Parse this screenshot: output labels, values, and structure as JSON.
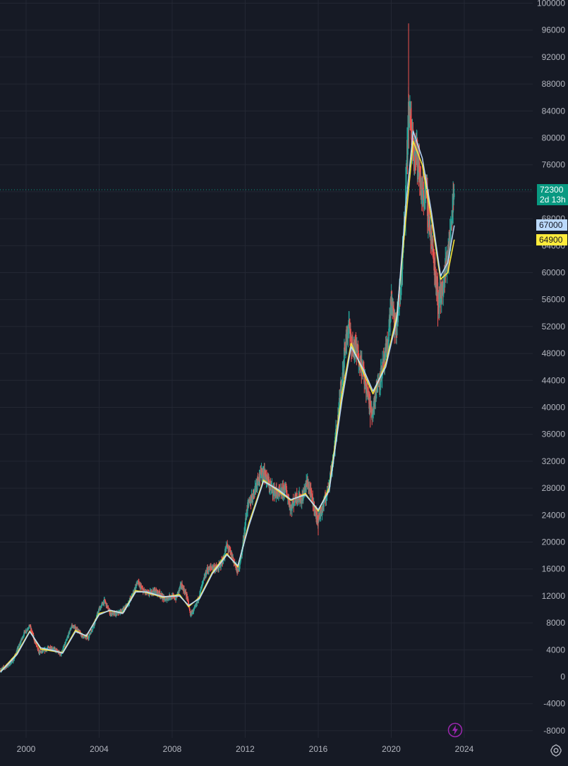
{
  "chart_data": {
    "type": "candlestick",
    "y_axis": {
      "ticks": [
        "-8000",
        "-4000",
        "0",
        "4000",
        "8000",
        "12000",
        "16000",
        "20000",
        "24000",
        "28000",
        "32000",
        "36000",
        "40000",
        "44000",
        "48000",
        "52000",
        "56000",
        "60000",
        "64000",
        "68000",
        "72000",
        "76000",
        "80000",
        "84000",
        "88000",
        "92000",
        "96000",
        "100000"
      ],
      "range": [
        -8000,
        100000
      ]
    },
    "x_axis": {
      "ticks": [
        "2000",
        "2004",
        "2008",
        "2012",
        "2016",
        "2020",
        "2024"
      ],
      "range": [
        1998.6,
        2028.6
      ]
    },
    "price_series": [
      [
        1998.6,
        1000
      ],
      [
        1999.0,
        1700
      ],
      [
        1999.3,
        2500
      ],
      [
        1999.6,
        4500
      ],
      [
        1999.9,
        6500
      ],
      [
        2000.2,
        7600
      ],
      [
        2000.45,
        5500
      ],
      [
        2000.7,
        3600
      ],
      [
        2001.0,
        3900
      ],
      [
        2001.3,
        4400
      ],
      [
        2001.6,
        4000
      ],
      [
        2001.9,
        3300
      ],
      [
        2002.2,
        5300
      ],
      [
        2002.5,
        7600
      ],
      [
        2002.8,
        7000
      ],
      [
        2003.1,
        6000
      ],
      [
        2003.4,
        5800
      ],
      [
        2003.7,
        7600
      ],
      [
        2004.0,
        10000
      ],
      [
        2004.3,
        11300
      ],
      [
        2004.6,
        9400
      ],
      [
        2004.9,
        9300
      ],
      [
        2005.2,
        9700
      ],
      [
        2005.5,
        10500
      ],
      [
        2005.8,
        12000
      ],
      [
        2006.1,
        14000
      ],
      [
        2006.4,
        12800
      ],
      [
        2006.7,
        12300
      ],
      [
        2007.0,
        12800
      ],
      [
        2007.3,
        12400
      ],
      [
        2007.6,
        11400
      ],
      [
        2007.9,
        12000
      ],
      [
        2008.2,
        11600
      ],
      [
        2008.5,
        13700
      ],
      [
        2008.8,
        12000
      ],
      [
        2009.0,
        9200
      ],
      [
        2009.3,
        10400
      ],
      [
        2009.6,
        13200
      ],
      [
        2009.9,
        15800
      ],
      [
        2010.2,
        16300
      ],
      [
        2010.5,
        16000
      ],
      [
        2010.8,
        17400
      ],
      [
        2011.0,
        19500
      ],
      [
        2011.3,
        17800
      ],
      [
        2011.6,
        15400
      ],
      [
        2011.85,
        19000
      ],
      [
        2012.1,
        25000
      ],
      [
        2012.4,
        26800
      ],
      [
        2012.7,
        29500
      ],
      [
        2013.0,
        30500
      ],
      [
        2013.3,
        28500
      ],
      [
        2013.6,
        27500
      ],
      [
        2013.9,
        27000
      ],
      [
        2014.2,
        28000
      ],
      [
        2014.5,
        25000
      ],
      [
        2014.8,
        26800
      ],
      [
        2015.1,
        26300
      ],
      [
        2015.4,
        29000
      ],
      [
        2015.7,
        26000
      ],
      [
        2015.95,
        23300
      ],
      [
        2016.2,
        24700
      ],
      [
        2016.5,
        27500
      ],
      [
        2016.8,
        32000
      ],
      [
        2017.1,
        39000
      ],
      [
        2017.4,
        47000
      ],
      [
        2017.65,
        52500
      ],
      [
        2017.85,
        49000
      ],
      [
        2018.1,
        48500
      ],
      [
        2018.4,
        46000
      ],
      [
        2018.7,
        42000
      ],
      [
        2018.95,
        39000
      ],
      [
        2019.2,
        43000
      ],
      [
        2019.5,
        45500
      ],
      [
        2019.8,
        49000
      ],
      [
        2020.0,
        56000
      ],
      [
        2020.25,
        51000
      ],
      [
        2020.5,
        57000
      ],
      [
        2020.75,
        68000
      ],
      [
        2020.95,
        84000
      ],
      [
        2021.15,
        80000
      ],
      [
        2021.4,
        78000
      ],
      [
        2021.65,
        72000
      ],
      [
        2021.9,
        72000
      ],
      [
        2022.15,
        66000
      ],
      [
        2022.4,
        60000
      ],
      [
        2022.6,
        56000
      ],
      [
        2022.8,
        57500
      ],
      [
        2023.0,
        61000
      ],
      [
        2023.2,
        64000
      ],
      [
        2023.35,
        70000
      ],
      [
        2023.45,
        72300
      ]
    ],
    "moving_averages": [
      {
        "color": "#ffeb3b",
        "data": [
          [
            1998.6,
            800
          ],
          [
            1999.5,
            3500
          ],
          [
            2000.2,
            6800
          ],
          [
            2000.8,
            4100
          ],
          [
            2001.5,
            3800
          ],
          [
            2002.0,
            3600
          ],
          [
            2002.7,
            6900
          ],
          [
            2003.3,
            6000
          ],
          [
            2004.0,
            9400
          ],
          [
            2004.6,
            9800
          ],
          [
            2005.3,
            9500
          ],
          [
            2006.0,
            12800
          ],
          [
            2006.6,
            12500
          ],
          [
            2007.5,
            11800
          ],
          [
            2008.4,
            12200
          ],
          [
            2008.9,
            10400
          ],
          [
            2009.5,
            11800
          ],
          [
            2010.2,
            15500
          ],
          [
            2011.0,
            18300
          ],
          [
            2011.6,
            16300
          ],
          [
            2012.2,
            22800
          ],
          [
            2013.0,
            29200
          ],
          [
            2013.8,
            27600
          ],
          [
            2014.5,
            26200
          ],
          [
            2015.3,
            27200
          ],
          [
            2016.0,
            24600
          ],
          [
            2016.6,
            28000
          ],
          [
            2017.3,
            42000
          ],
          [
            2017.8,
            49500
          ],
          [
            2018.5,
            45000
          ],
          [
            2019.0,
            42000
          ],
          [
            2019.7,
            46500
          ],
          [
            2020.3,
            53500
          ],
          [
            2020.8,
            68000
          ],
          [
            2021.2,
            79500
          ],
          [
            2021.7,
            76000
          ],
          [
            2022.2,
            68000
          ],
          [
            2022.7,
            59000
          ],
          [
            2023.1,
            60000
          ],
          [
            2023.45,
            64900
          ]
        ]
      },
      {
        "color": "#bbd9fb",
        "data": [
          [
            1998.6,
            700
          ],
          [
            1999.5,
            3300
          ],
          [
            2000.2,
            6700
          ],
          [
            2000.8,
            4300
          ],
          [
            2001.5,
            3900
          ],
          [
            2002.0,
            3500
          ],
          [
            2002.7,
            6700
          ],
          [
            2003.3,
            6100
          ],
          [
            2004.0,
            9200
          ],
          [
            2004.6,
            9900
          ],
          [
            2005.3,
            9400
          ],
          [
            2006.0,
            12600
          ],
          [
            2006.6,
            12600
          ],
          [
            2007.5,
            11900
          ],
          [
            2008.4,
            12000
          ],
          [
            2008.9,
            10600
          ],
          [
            2009.5,
            11600
          ],
          [
            2010.2,
            15300
          ],
          [
            2011.0,
            18100
          ],
          [
            2011.6,
            16500
          ],
          [
            2012.2,
            22400
          ],
          [
            2013.0,
            29000
          ],
          [
            2013.8,
            27800
          ],
          [
            2014.5,
            26300
          ],
          [
            2015.3,
            27000
          ],
          [
            2016.0,
            24800
          ],
          [
            2016.6,
            27600
          ],
          [
            2017.3,
            41000
          ],
          [
            2017.8,
            49000
          ],
          [
            2018.5,
            45500
          ],
          [
            2019.0,
            42400
          ],
          [
            2019.7,
            46000
          ],
          [
            2020.3,
            53000
          ],
          [
            2020.8,
            70000
          ],
          [
            2021.2,
            81000
          ],
          [
            2021.7,
            77000
          ],
          [
            2022.2,
            69000
          ],
          [
            2022.7,
            59500
          ],
          [
            2023.1,
            61500
          ],
          [
            2023.45,
            67000
          ]
        ]
      }
    ],
    "last_price": 72300,
    "ma1_value": 67000,
    "ma2_value": 64900
  },
  "badges": {
    "price": "72300",
    "countdown": "2d 13h",
    "ma1": "67000",
    "ma2": "64900"
  },
  "colors": {
    "background": "#161a25",
    "grid": "#232733",
    "up": "#26a69a",
    "down": "#ef5350",
    "price_line": "#089981"
  },
  "icons": {
    "settings": "gear-icon",
    "flash": "lightning-icon"
  }
}
